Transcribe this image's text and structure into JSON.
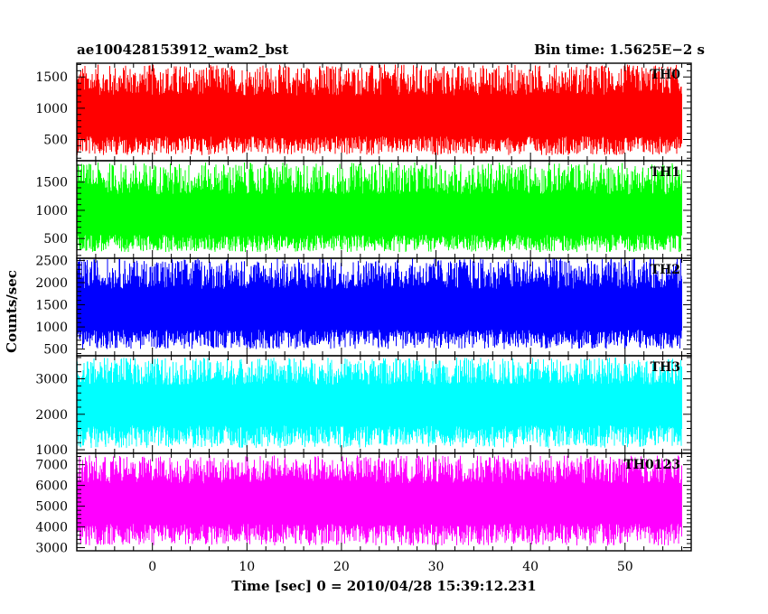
{
  "title": "ae100428153912_wam2_bst",
  "bin_time": "Bin time: 1.5625E−2 s",
  "chart_data": {
    "type": "line",
    "x_range": [
      -8.0,
      57.0
    ],
    "data_x_range": [
      -8.0,
      56.0
    ],
    "x_ticks": [
      0,
      10,
      20,
      30,
      40,
      50
    ],
    "x_tick_labels": [
      "0",
      "10",
      "20",
      "30",
      "40",
      "50"
    ],
    "xlabel": "Time [sec]  0 = 2010/04/28 15:39:12.231",
    "ylabel": "Counts/sec",
    "panels": [
      {
        "name": "TH0",
        "color": "#ff0000",
        "ylim": [
          160,
          1720
        ],
        "y_ticks": [
          500,
          1000,
          1500
        ],
        "y_tick_labels": [
          "500",
          "1000",
          "1500"
        ],
        "mean": 800,
        "low": 250,
        "high": 1700
      },
      {
        "name": "TH1",
        "color": "#00ff00",
        "ylim": [
          150,
          1880
        ],
        "y_ticks": [
          500,
          1000,
          1500
        ],
        "y_tick_labels": [
          "500",
          "1000",
          "1500"
        ],
        "mean": 820,
        "low": 260,
        "high": 1850
      },
      {
        "name": "TH2",
        "color": "#0000ff",
        "ylim": [
          350,
          2550
        ],
        "y_ticks": [
          500,
          1000,
          1500,
          2000,
          2500
        ],
        "y_tick_labels": [
          "500",
          "1000",
          "1500",
          "2000",
          "2500"
        ],
        "mean": 1300,
        "low": 500,
        "high": 2550
      },
      {
        "name": "TH3",
        "color": "#00ffff",
        "ylim": [
          900,
          3650
        ],
        "y_ticks": [
          1000,
          2000,
          3000
        ],
        "y_tick_labels": [
          "1000",
          "2000",
          "3000"
        ],
        "mean": 2200,
        "low": 1050,
        "high": 3600
      },
      {
        "name": "TH0123",
        "color": "#ff00ff",
        "ylim": [
          2850,
          7550
        ],
        "y_ticks": [
          3000,
          4000,
          5000,
          6000,
          7000
        ],
        "y_tick_labels": [
          "3000",
          "4000",
          "5000",
          "6000",
          "7000"
        ],
        "mean": 5000,
        "low": 3100,
        "high": 7450
      }
    ]
  }
}
